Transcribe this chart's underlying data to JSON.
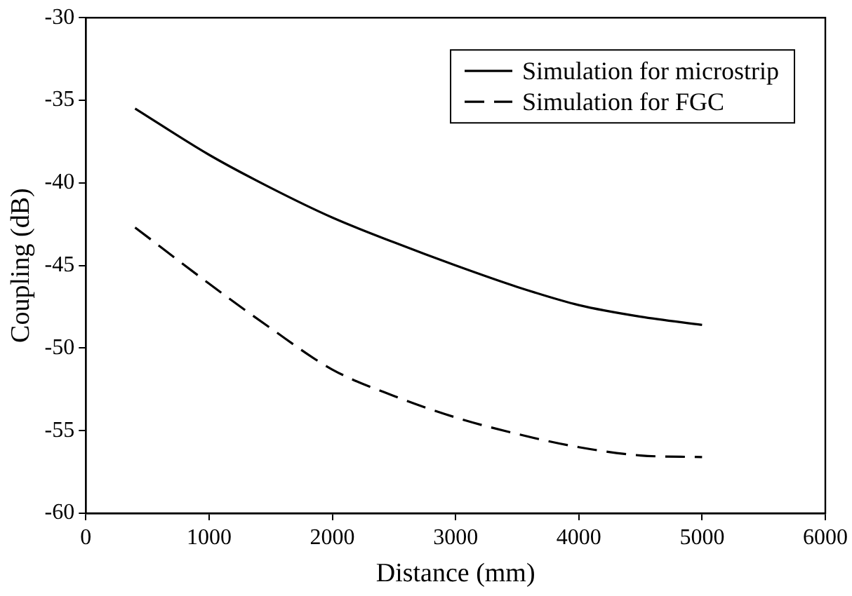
{
  "chart_data": {
    "type": "line",
    "xlabel": "Distance (mm)",
    "ylabel": "Coupling (dB)",
    "xlim": [
      0,
      6000
    ],
    "xticks": [
      0,
      1000,
      2000,
      3000,
      4000,
      5000,
      6000
    ],
    "ylim": [
      -60,
      -30
    ],
    "yticks": [
      -60,
      -55,
      -50,
      -45,
      -40,
      -35,
      -30
    ],
    "grid": false,
    "legend": "top right",
    "marker": "none",
    "series": [
      {
        "name": "Simulation for microstrip",
        "color": "#000000",
        "line_style": "solid",
        "x": [
          400,
          1000,
          1500,
          2000,
          2500,
          3000,
          3500,
          4000,
          4500,
          5000
        ],
        "values": [
          -35.5,
          -38.3,
          -40.3,
          -42.1,
          -43.6,
          -45.0,
          -46.3,
          -47.4,
          -48.1,
          -48.6
        ]
      },
      {
        "name": "Simulation for FGC",
        "color": "#000000",
        "line_style": "dashed",
        "x": [
          400,
          1000,
          1500,
          2000,
          2500,
          3000,
          3500,
          4000,
          4500,
          5000
        ],
        "values": [
          -42.7,
          -46.1,
          -48.8,
          -51.3,
          -52.9,
          -54.2,
          -55.2,
          -56.0,
          -56.5,
          -56.6
        ]
      }
    ]
  }
}
